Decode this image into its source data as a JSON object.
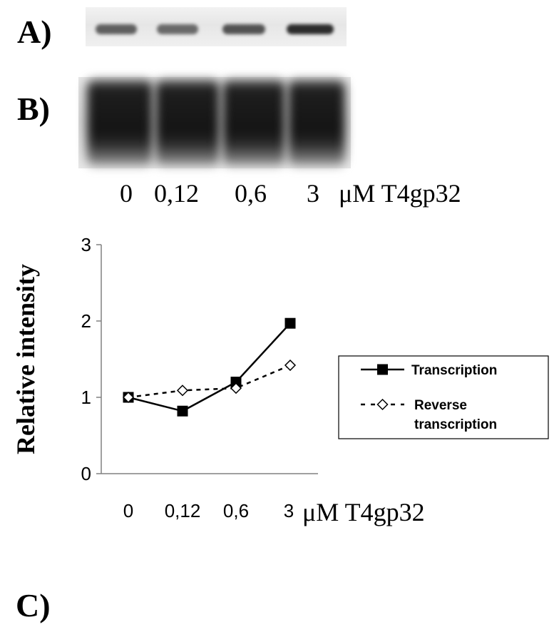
{
  "panels": {
    "a": "A)",
    "b": "B)",
    "c": "C)"
  },
  "gel_lanes": {
    "labels": [
      "0",
      "0,12",
      "0,6",
      "3"
    ],
    "unit": "μM T4gp32",
    "a_band_intensity": [
      0.55,
      0.5,
      0.62,
      0.82
    ]
  },
  "chart_data": {
    "type": "line",
    "categories": [
      "0",
      "0,12",
      "0,6",
      "3"
    ],
    "x_unit_label": "μM T4gp32",
    "ylabel": "Relative intensity",
    "ylim": [
      0,
      3
    ],
    "yticks": [
      "0",
      "1",
      "2",
      "3"
    ],
    "grid": false,
    "legend_position": "right",
    "series": [
      {
        "name": "Transcription",
        "values": [
          1.0,
          0.82,
          1.2,
          1.97
        ],
        "marker": "filled-square",
        "line": "solid",
        "color": "#000000"
      },
      {
        "name": "Reverse transcription",
        "values": [
          1.0,
          1.09,
          1.12,
          1.42
        ],
        "marker": "open-diamond",
        "line": "dashed",
        "color": "#000000"
      }
    ],
    "legend_lines": [
      [
        "Transcription"
      ],
      [
        "Reverse",
        "transcription"
      ]
    ]
  }
}
